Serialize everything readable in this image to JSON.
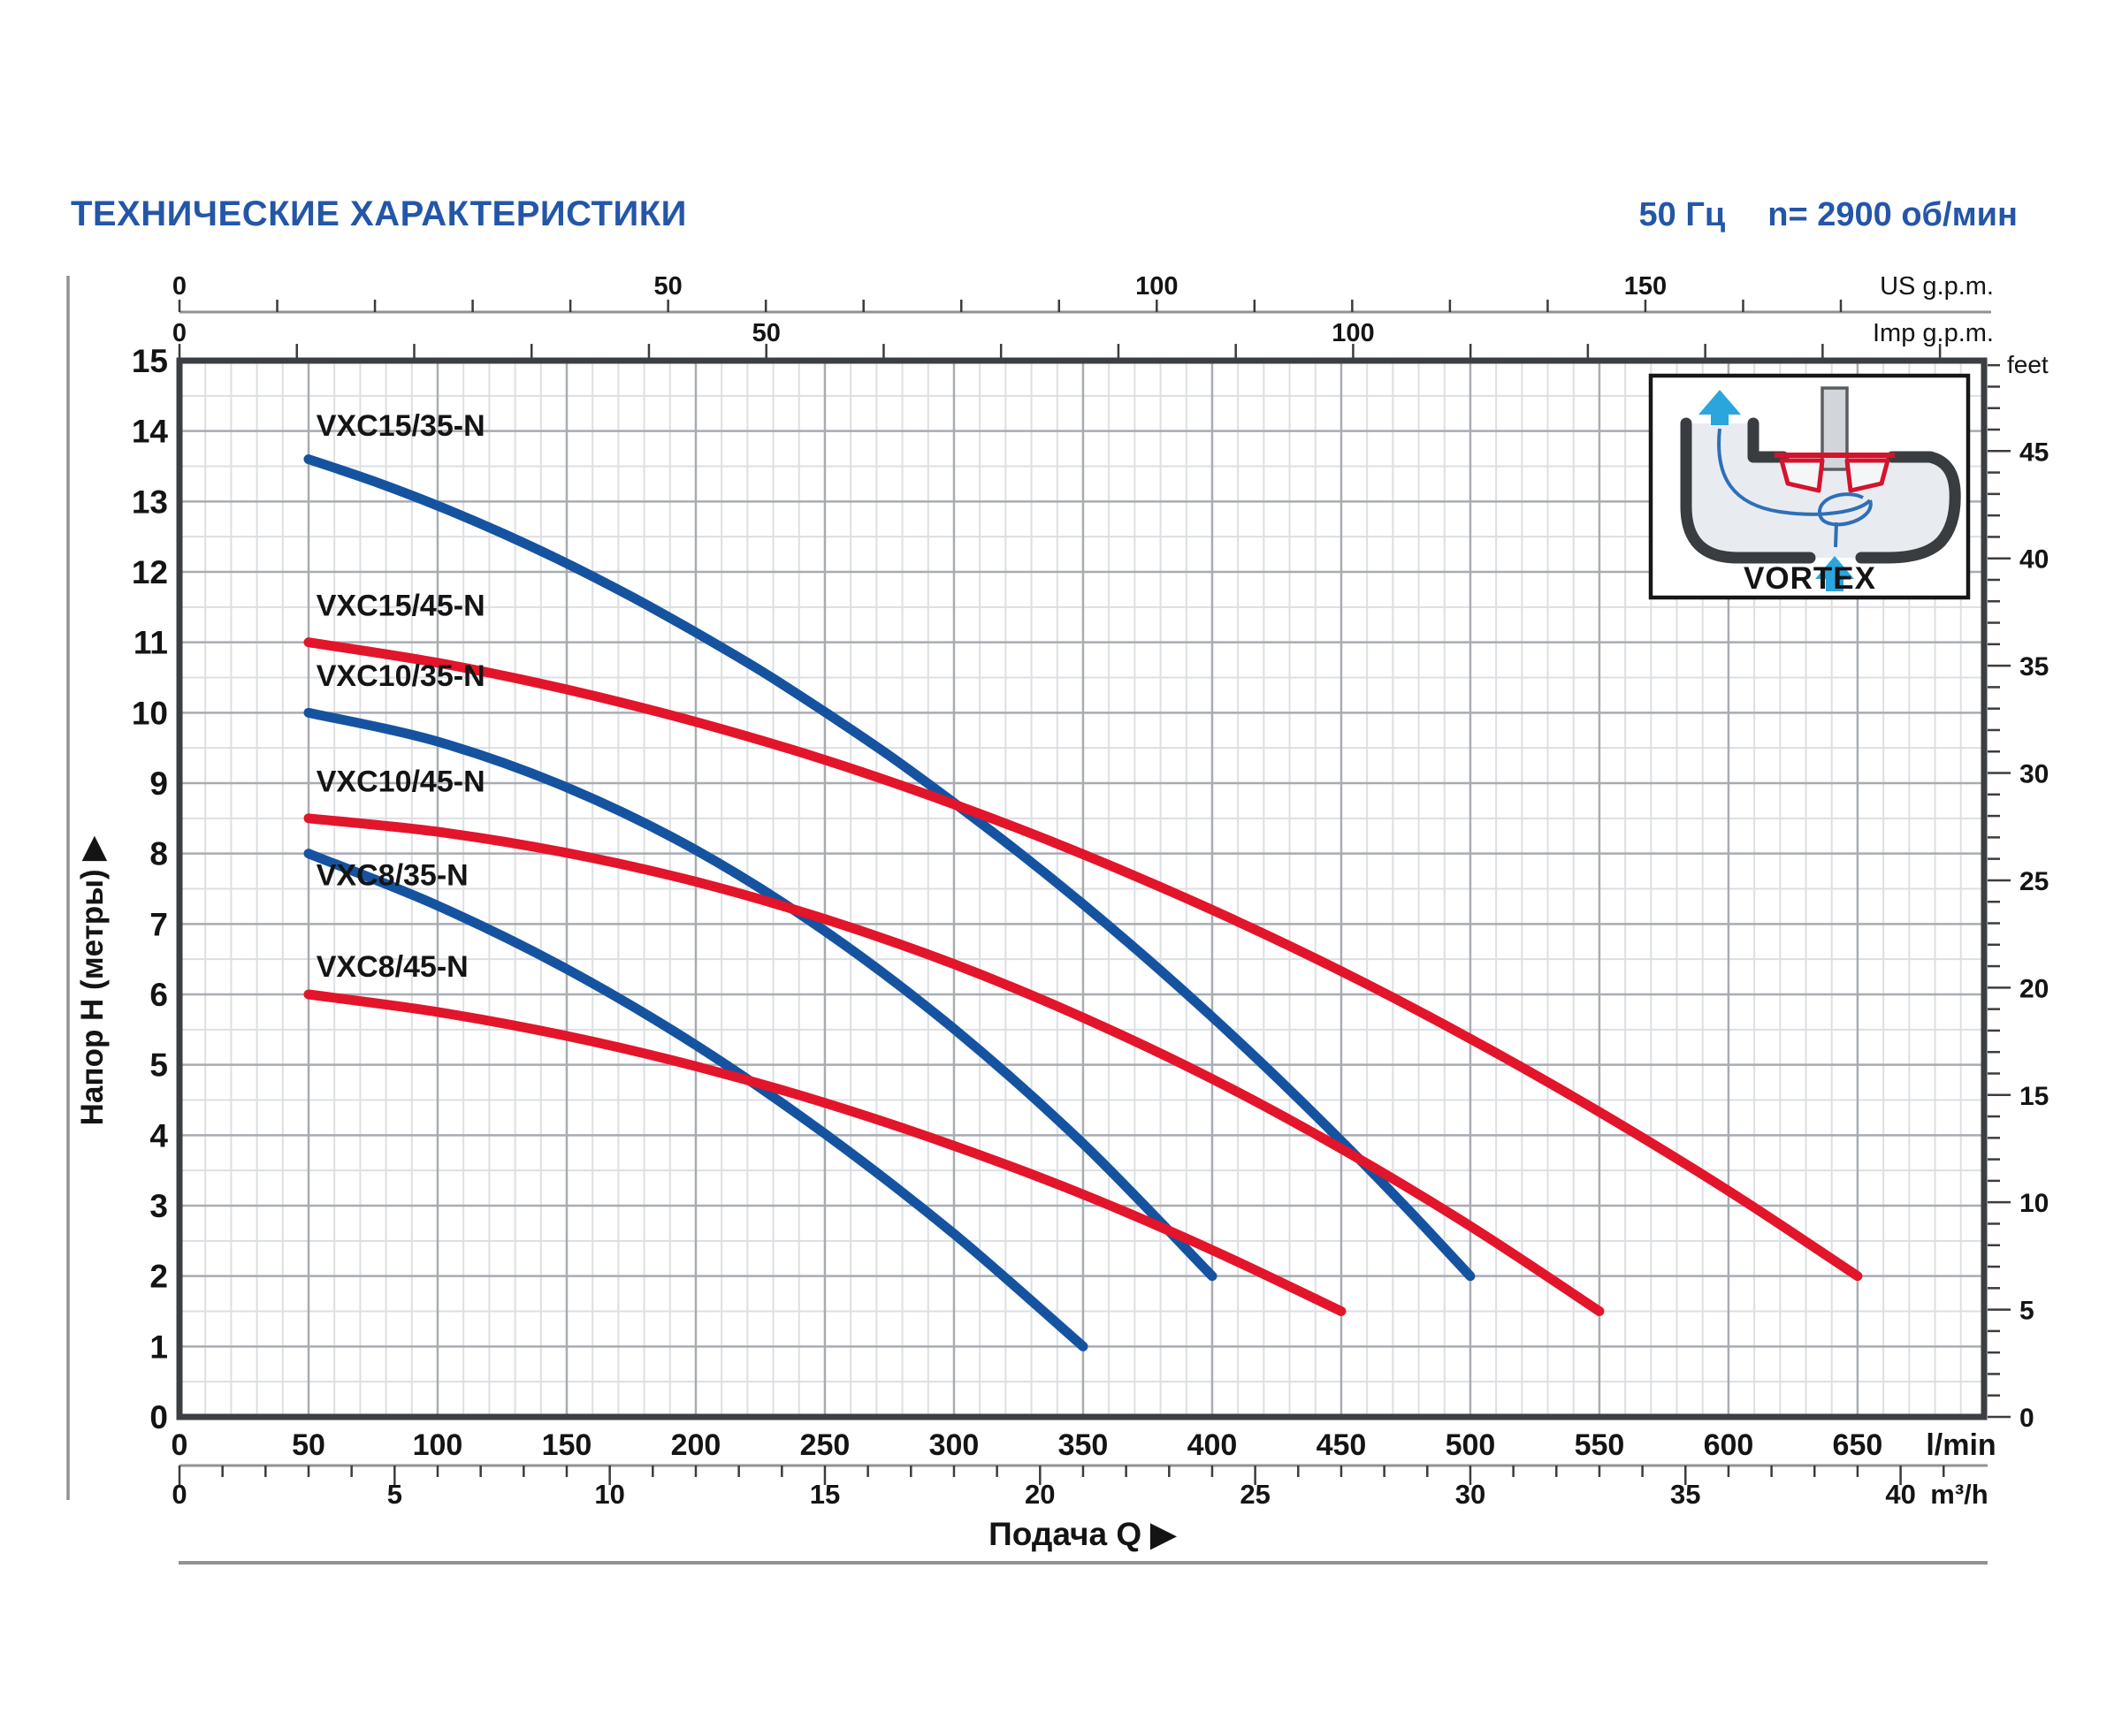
{
  "header": {
    "title": "ТЕХНИЧЕСКИЕ ХАРАКТЕРИСТИКИ",
    "frequency": "50 Гц",
    "speed": "n= 2900 об/мин"
  },
  "inset": {
    "label": "VORTEX"
  },
  "colors": {
    "title_blue": "#2456a8",
    "curve_blue": "#1553a0",
    "curve_red": "#e2152b",
    "grid_minor": "#dcdfe3",
    "grid_major": "#a8acb2",
    "border": "#3b3e42",
    "ruler": "#8f9297",
    "tick": "#3c3c3c",
    "text": "#141414",
    "arrow_blue": "#2aa5de",
    "flow_blue": "#2e6fb8",
    "casing": "#3a3d40",
    "casing_fill": "#e8ecf1",
    "impeller_red": "#d5132b"
  },
  "chart_data": {
    "type": "line",
    "xlabel": "Подача Q  ▶",
    "ylabel": "Напор H (метры)  ▶",
    "x_axes": {
      "lmin": {
        "unit": "l/min",
        "max": 699,
        "minor_step": 10,
        "major_step": 50,
        "labels": [
          0,
          50,
          100,
          150,
          200,
          250,
          300,
          350,
          400,
          450,
          500,
          550,
          600,
          650
        ]
      },
      "m3h": {
        "unit": "m³/h",
        "lmin_per_unit": 16.6667,
        "max": 41,
        "minor_step": 1,
        "major_step": 5,
        "labels": [
          0,
          5,
          10,
          15,
          20,
          25,
          30,
          35,
          40
        ]
      },
      "usgpm": {
        "unit": "US g.p.m.",
        "lmin_per_unit": 3.78541,
        "max": 172,
        "minor_step": 10,
        "labels": [
          0,
          50,
          100,
          150
        ]
      },
      "impgpm": {
        "unit": "Imp g.p.m.",
        "lmin_per_unit": 4.54609,
        "max": 151,
        "minor_step": 10,
        "labels": [
          0,
          50,
          100
        ]
      }
    },
    "y_axes": {
      "meters": {
        "max": 15,
        "minor_step": 0.5,
        "major_step": 1,
        "labels": [
          0,
          1,
          2,
          3,
          4,
          5,
          6,
          7,
          8,
          9,
          10,
          11,
          12,
          13,
          14,
          15
        ]
      },
      "feet": {
        "unit": "feet",
        "m_per_unit": 0.3048,
        "max": 49,
        "minor_step": 1,
        "major_step": 5,
        "labels": [
          0,
          5,
          10,
          15,
          20,
          25,
          30,
          35,
          40,
          45
        ]
      }
    },
    "series": [
      {
        "name": "VXC15/35-N",
        "color_key": "curve_blue",
        "label_pos": [
          53,
          13.93
        ],
        "points": [
          [
            50,
            13.6
          ],
          [
            75,
            13.29
          ],
          [
            100,
            12.94
          ],
          [
            125,
            12.55
          ],
          [
            150,
            12.12
          ],
          [
            175,
            11.65
          ],
          [
            200,
            11.14
          ],
          [
            225,
            10.6
          ],
          [
            250,
            10.01
          ],
          [
            275,
            9.39
          ],
          [
            300,
            8.72
          ],
          [
            325,
            8.02
          ],
          [
            350,
            7.28
          ],
          [
            375,
            6.5
          ],
          [
            400,
            5.68
          ],
          [
            425,
            4.82
          ],
          [
            450,
            3.92
          ],
          [
            475,
            2.98
          ],
          [
            500,
            2.0
          ]
        ]
      },
      {
        "name": "VXC15/45-N",
        "color_key": "curve_red",
        "label_pos": [
          53,
          11.38
        ],
        "points": [
          [
            50,
            11.0
          ],
          [
            100,
            10.71
          ],
          [
            150,
            10.33
          ],
          [
            200,
            9.87
          ],
          [
            250,
            9.33
          ],
          [
            300,
            8.7
          ],
          [
            350,
            7.99
          ],
          [
            400,
            7.2
          ],
          [
            450,
            6.33
          ],
          [
            500,
            5.37
          ],
          [
            550,
            4.33
          ],
          [
            600,
            3.21
          ],
          [
            650,
            2.0
          ]
        ]
      },
      {
        "name": "VXC10/35-N",
        "color_key": "curve_blue",
        "label_pos": [
          53,
          10.38
        ],
        "points": [
          [
            50,
            10.0
          ],
          [
            100,
            9.59
          ],
          [
            150,
            8.94
          ],
          [
            200,
            8.05
          ],
          [
            250,
            6.9
          ],
          [
            300,
            5.51
          ],
          [
            350,
            3.88
          ],
          [
            400,
            2.0
          ]
        ]
      },
      {
        "name": "VXC10/45-N",
        "color_key": "curve_red",
        "label_pos": [
          53,
          8.88
        ],
        "points": [
          [
            50,
            8.5
          ],
          [
            100,
            8.31
          ],
          [
            150,
            8.01
          ],
          [
            200,
            7.6
          ],
          [
            250,
            7.07
          ],
          [
            300,
            6.43
          ],
          [
            350,
            5.67
          ],
          [
            400,
            4.8
          ],
          [
            450,
            3.81
          ],
          [
            500,
            2.71
          ],
          [
            550,
            1.5
          ]
        ]
      },
      {
        "name": "VXC8/35-N",
        "color_key": "curve_blue",
        "label_pos": [
          53,
          7.55
        ],
        "points": [
          [
            50,
            8.0
          ],
          [
            100,
            7.26
          ],
          [
            150,
            6.36
          ],
          [
            200,
            5.28
          ],
          [
            250,
            4.02
          ],
          [
            300,
            2.6
          ],
          [
            350,
            1.0
          ]
        ]
      },
      {
        "name": "VXC8/45-N",
        "color_key": "curve_red",
        "label_pos": [
          53,
          6.25
        ],
        "points": [
          [
            50,
            6.0
          ],
          [
            100,
            5.75
          ],
          [
            150,
            5.41
          ],
          [
            200,
            4.98
          ],
          [
            250,
            4.46
          ],
          [
            300,
            3.85
          ],
          [
            350,
            3.16
          ],
          [
            400,
            2.37
          ],
          [
            450,
            1.5
          ]
        ]
      }
    ]
  }
}
